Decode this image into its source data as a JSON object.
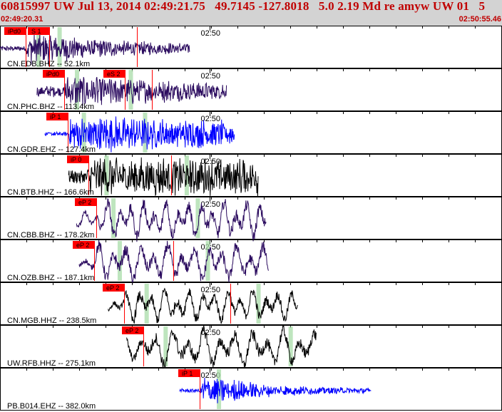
{
  "header": {
    "title": "60815997 UW Jul 13, 2014 02:49:21.75   49.7145 -127.8018   5.0 2.19 Md re amyw UW 01   5",
    "start_time": "02:49:20.31",
    "end_time": "02:50:55.46"
  },
  "chart_data": {
    "type": "line",
    "title": "60815997 UW Jul 13, 2014 02:49:21.75   49.7145 -127.8018   5.0 2.19 Md re amyw UW 01   5",
    "x_range_seconds": [
      0,
      95.15
    ],
    "x_start_label": "02:49:20.31",
    "x_end_label": "02:50:55.46",
    "time_marker_label": "02:50",
    "time_marker_seconds": 39.69,
    "colors": {
      "red_pick": "#ff0000",
      "band": "#a8dca8",
      "trace_purple": "#2a0a5e",
      "trace_blue": "#0000ff",
      "trace_black": "#000000"
    },
    "series": [
      {
        "name": "CN.EDB.BHZ -- 52.1km",
        "color": "#2a0a5e",
        "start": 0,
        "end": 36,
        "amp": 0.16,
        "period": 0.25,
        "onset": 4.8,
        "onset_amp": 0.9,
        "decay": 18,
        "picks": [
          {
            "label": "iPd0",
            "t": 4.8
          },
          {
            "label": "S 1",
            "t": 9.3
          }
        ],
        "red_lines": [
          4.8,
          9.3,
          25.9
        ],
        "bands": [
          7.3,
          11.3
        ]
      },
      {
        "name": "CN.PHC.BHZ -- 113.4km",
        "color": "#2a0a5e",
        "start": 7,
        "end": 43,
        "amp": 0.35,
        "period": 0.35,
        "onset": 12.2,
        "onset_amp": 0.7,
        "decay": 25,
        "picks": [
          {
            "label": "iPd0",
            "t": 12.2
          },
          {
            "label": "eS 2",
            "t": 23.7
          }
        ],
        "red_lines": [
          12.2,
          23.7,
          28.8
        ],
        "bands": [
          14.6,
          24.8
        ]
      },
      {
        "name": "CN.GDR.EHZ -- 127.4km",
        "color": "#0000ff",
        "start": 8.5,
        "end": 44.5,
        "amp": 0.12,
        "period": 0.2,
        "onset": 12.9,
        "onset_amp": 1.0,
        "decay": 70,
        "picks": [
          {
            "label": "iP 1",
            "t": 12.9
          }
        ],
        "red_lines": [
          12.9
        ],
        "bands": [
          15.9,
          27.5
        ]
      },
      {
        "name": "CN.BTB.HHZ -- 166.6km",
        "color": "#000000",
        "start": 13,
        "end": 49,
        "amp": 0.45,
        "period": 0.6,
        "onset": 16.7,
        "onset_amp": 0.85,
        "decay": 120,
        "picks": [
          {
            "label": "iP 0",
            "t": 16.7
          }
        ],
        "red_lines": [
          16.7,
          32.5
        ],
        "bands": [
          20.2,
          35.4
        ]
      },
      {
        "name": "CN.CBB.BHZ -- 178.2km",
        "color": "#2a0a5e",
        "start": 14.5,
        "end": 50.5,
        "amp": 0.5,
        "period": 2.2,
        "onset": 18.3,
        "onset_amp": 0.9,
        "decay": 120,
        "picks": [
          {
            "label": "eP 2",
            "t": 18.3
          }
        ],
        "red_lines": [
          18.3
        ],
        "bands": [
          21.5,
          37.5
        ]
      },
      {
        "name": "CN.OZB.BHZ -- 187.1km",
        "color": "#2a0a5e",
        "start": 15,
        "end": 51,
        "amp": 0.55,
        "period": 2.6,
        "onset": 17.9,
        "onset_amp": 0.8,
        "decay": 120,
        "picks": [
          {
            "label": "eP 2",
            "t": 17.9
          }
        ],
        "red_lines": [
          17.9,
          32.9
        ],
        "bands": [
          22.7,
          39.4
        ]
      },
      {
        "name": "CN.MGB.HHZ -- 238.5km",
        "color": "#000000",
        "start": 20.5,
        "end": 56.5,
        "amp": 0.5,
        "period": 2.4,
        "onset": 23.5,
        "onset_amp": 0.6,
        "decay": 120,
        "picks": [
          {
            "label": "eP 2",
            "t": 23.5
          }
        ],
        "red_lines": [
          23.5,
          43.6
        ],
        "bands": [
          27.8,
          49.0
        ]
      },
      {
        "name": "UW.RFB.HHZ -- 275.1km",
        "color": "#000000",
        "start": 24,
        "end": 60,
        "amp": 0.8,
        "period": 3.0,
        "onset": 27.1,
        "onset_amp": 0.5,
        "decay": 120,
        "picks": [
          {
            "label": "eP 2",
            "t": 27.1
          }
        ],
        "red_lines": [
          27.1
        ],
        "bands": [
          31.4,
          55.1
        ]
      },
      {
        "name": "PB.B014.EHZ -- 382.0km",
        "color": "#0000ff",
        "start": 34,
        "end": 70.4,
        "amp": 0.12,
        "period": 0.18,
        "onset": 37.9,
        "onset_amp": 1.0,
        "decay": 10,
        "picks": [
          {
            "label": "iP 1",
            "t": 37.9
          }
        ],
        "red_lines": [
          37.9
        ],
        "bands": [
          41.5
        ]
      }
    ]
  }
}
